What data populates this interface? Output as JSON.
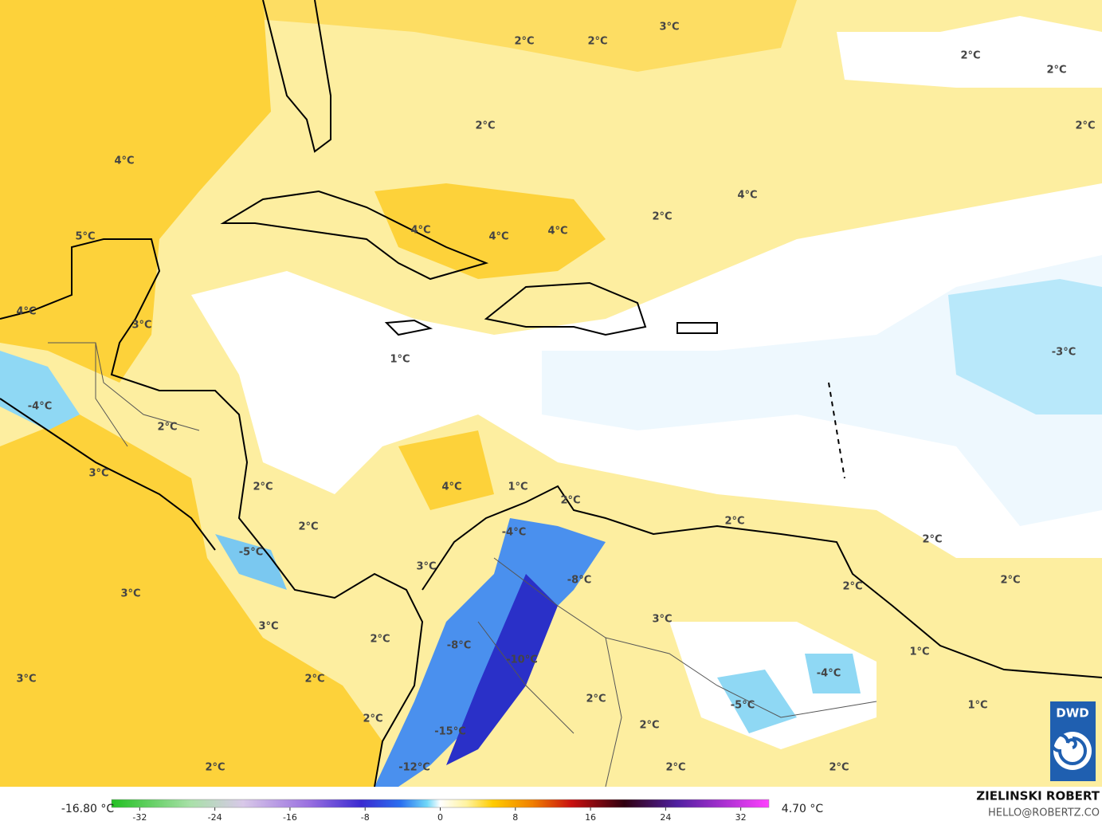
{
  "map": {
    "labels": [
      "2°C",
      "2°C",
      "3°C",
      "2°C",
      "2°C",
      "2°C",
      "2°C",
      "4°C",
      "4°C",
      "2°C",
      "4°C",
      "4°C",
      "4°C",
      "5°C",
      "4°C",
      "3°C",
      "1°C",
      "-3°C",
      "-4°C",
      "2°C",
      "3°C",
      "2°C",
      "4°C",
      "1°C",
      "2°C",
      "2°C",
      "-4°C",
      "2°C",
      "2°C",
      "-5°C",
      "3°C",
      "-8°C",
      "2°C",
      "2°C",
      "3°C",
      "3°C",
      "3°C",
      "2°C",
      "-8°C",
      "-10°C",
      "1°C",
      "-4°C",
      "3°C",
      "2°C",
      "2°C",
      "-5°C",
      "1°C",
      "2°C",
      "2°C",
      "-15°C",
      "2°C",
      "-12°C",
      "2°C",
      "2°C"
    ]
  },
  "colorbar": {
    "lim": [
      -35,
      35
    ],
    "ticks": [
      -32,
      -24,
      -16,
      -8,
      0,
      8,
      16,
      24,
      32
    ],
    "min_label": "-16.80 °C",
    "max_label": "4.70 °C"
  },
  "footer": {
    "author": "ZIELINSKI ROBERT",
    "contact": "HELLO@ROBERTZ.CO",
    "logo": "DWD"
  }
}
